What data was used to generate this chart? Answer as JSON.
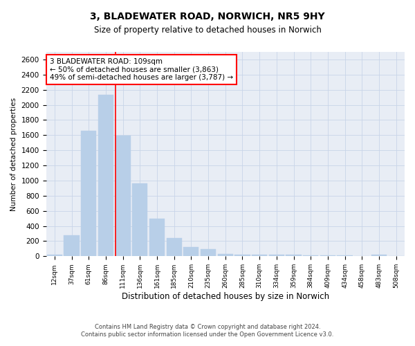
{
  "title_line1": "3, BLADEWATER ROAD, NORWICH, NR5 9HY",
  "title_line2": "Size of property relative to detached houses in Norwich",
  "xlabel": "Distribution of detached houses by size in Norwich",
  "ylabel": "Number of detached properties",
  "footer_line1": "Contains HM Land Registry data © Crown copyright and database right 2024.",
  "footer_line2": "Contains public sector information licensed under the Open Government Licence v3.0.",
  "annotation_line1": "3 BLADEWATER ROAD: 109sqm",
  "annotation_line2": "← 50% of detached houses are smaller (3,863)",
  "annotation_line3": "49% of semi-detached houses are larger (3,787) →",
  "bar_color": "#b8cfe8",
  "bar_edge_color": "#b8cfe8",
  "vline_color": "red",
  "categories": [
    "12sqm",
    "37sqm",
    "61sqm",
    "86sqm",
    "111sqm",
    "136sqm",
    "161sqm",
    "185sqm",
    "210sqm",
    "235sqm",
    "260sqm",
    "285sqm",
    "310sqm",
    "334sqm",
    "359sqm",
    "384sqm",
    "409sqm",
    "434sqm",
    "458sqm",
    "483sqm",
    "508sqm"
  ],
  "values": [
    20,
    280,
    1660,
    2130,
    1590,
    960,
    500,
    245,
    125,
    95,
    35,
    25,
    20,
    20,
    20,
    10,
    10,
    10,
    5,
    20,
    5
  ],
  "ylim": [
    0,
    2700
  ],
  "yticks": [
    0,
    200,
    400,
    600,
    800,
    1000,
    1200,
    1400,
    1600,
    1800,
    2000,
    2200,
    2400,
    2600
  ],
  "grid_color": "#c8d4e8",
  "bg_color": "#e8edf5",
  "annotation_box_facecolor": "white",
  "annotation_box_edgecolor": "red",
  "fig_width": 6.0,
  "fig_height": 5.0,
  "dpi": 100
}
